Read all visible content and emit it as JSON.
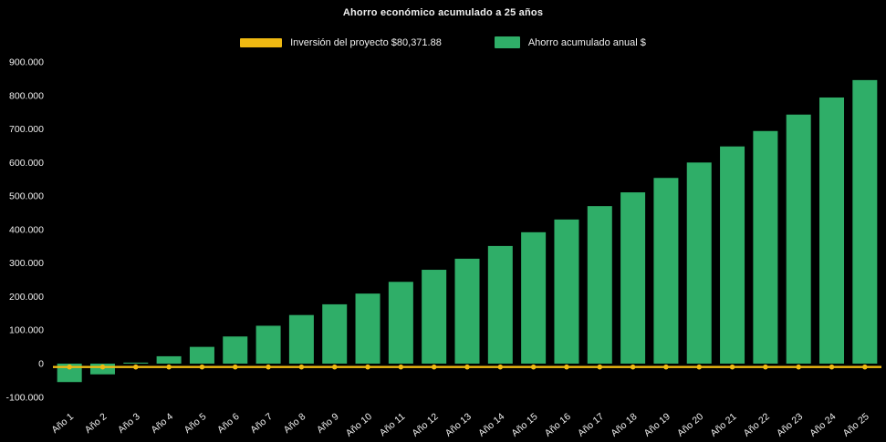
{
  "chart_data": {
    "type": "bar",
    "title": "Ahorro económico acumulado a 25 años",
    "background_color": "#000000",
    "text_color": "#f0f0f0",
    "categories": [
      "Año 1",
      "Año 2",
      "Año 3",
      "Año 4",
      "Año 5",
      "Año 6",
      "Año 7",
      "Año 8",
      "Año 9",
      "Año 10",
      "Año 11",
      "Año 12",
      "Año 13",
      "Año 14",
      "Año 15",
      "Año 16",
      "Año 17",
      "Año 18",
      "Año 19",
      "Año 20",
      "Año 21",
      "Año 22",
      "Año 23",
      "Año 24",
      "Año 25"
    ],
    "series": [
      {
        "name": "Inversión del proyecto $80,371.88",
        "type": "line",
        "color": "#efb912",
        "constant_value": -10000
      },
      {
        "name": "Ahorro acumulado anual $",
        "type": "bar",
        "color": "#2fae68",
        "values": [
          -55000,
          -32000,
          3000,
          22000,
          50000,
          81000,
          113000,
          145000,
          177000,
          209000,
          244000,
          280000,
          313000,
          351000,
          392000,
          430000,
          470000,
          511000,
          554000,
          600000,
          648000,
          694000,
          743000,
          794000,
          846000
        ]
      }
    ],
    "ylim": [
      -100000,
      900000
    ],
    "ytick_step": 100000,
    "grid": false,
    "legend_position": "top"
  }
}
